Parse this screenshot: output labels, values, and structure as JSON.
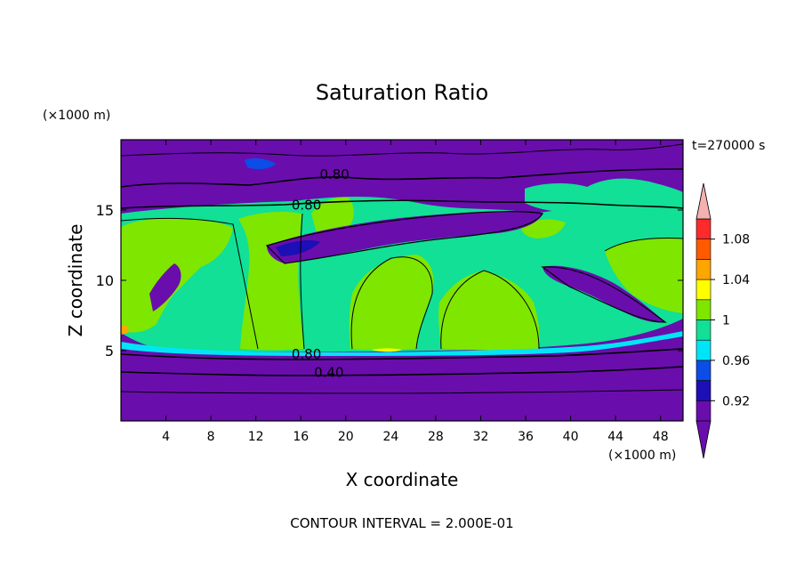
{
  "chart_data": {
    "type": "heatmap",
    "title": "Saturation Ratio",
    "xlabel": "X coordinate",
    "ylabel": "Z coordinate",
    "x_unit": "(×1000 m)",
    "y_unit": "(×1000 m)",
    "time_label": "t=270000 s",
    "footer": "CONTOUR INTERVAL = 2.000E-01",
    "xlim": [
      0,
      50
    ],
    "ylim": [
      0,
      20
    ],
    "x_ticks": [
      4,
      8,
      12,
      16,
      20,
      24,
      28,
      32,
      36,
      40,
      44,
      48
    ],
    "y_ticks": [
      5,
      10,
      15
    ],
    "colorbar": {
      "levels": [
        0.9,
        0.92,
        0.94,
        0.96,
        0.98,
        1.0,
        1.02,
        1.04,
        1.06,
        1.08,
        1.1
      ],
      "labels": [
        {
          "value": 0.92,
          "text": "0.92"
        },
        {
          "value": 0.96,
          "text": "0.96"
        },
        {
          "value": 1.0,
          "text": "1"
        },
        {
          "value": 1.04,
          "text": "1.04"
        },
        {
          "value": 1.08,
          "text": "1.08"
        }
      ],
      "colors": [
        "#6a0dad",
        "#1c0fb5",
        "#0b4de6",
        "#00e5f5",
        "#11e096",
        "#7fe600",
        "#ffff00",
        "#ffa500",
        "#ff5a00",
        "#ff2a2a"
      ],
      "under_color": "#6a0dad",
      "over_color": "#f5b0b0"
    },
    "contour_labels": [
      {
        "x": 19,
        "z": 17.6,
        "text": "0.80"
      },
      {
        "x": 16.5,
        "z": 15.4,
        "text": "0.80"
      },
      {
        "x": 16.5,
        "z": 4.8,
        "text": "0.80"
      },
      {
        "x": 18.5,
        "z": 3.5,
        "text": "0.40"
      }
    ],
    "regions": {
      "background": "#6a0dad",
      "main_band_z": [
        5.1,
        15.4
      ],
      "main_band_color": "#11e096",
      "green_plumes_color": "#7fe600"
    }
  }
}
